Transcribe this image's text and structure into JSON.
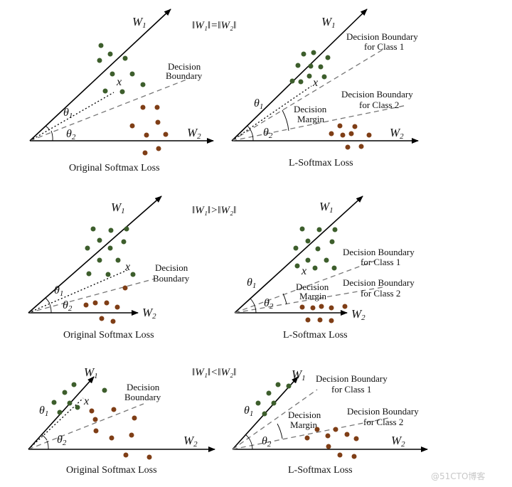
{
  "captions": {
    "original": "Original Softmax Loss",
    "lsoftmax": "L-Softmax Loss"
  },
  "labels": {
    "w1": "W",
    "w1_sub": "1",
    "w2": "W",
    "w2_sub": "2",
    "theta1": "θ",
    "theta1_sub": "1",
    "theta2": "θ",
    "theta2_sub": "2",
    "x": "x",
    "decision": "Decision",
    "boundary": "Boundary",
    "db_class1_line1": "Decision Boundary",
    "db_class1_line2": "for Class 1",
    "db_class2_line1": "Decision Boundary",
    "db_class2_line2": "for Class 2",
    "margin_line1": "Decision",
    "margin_line2": "Margin"
  },
  "rows": [
    {
      "norm_relation": "‖W₁‖=‖W₂‖"
    },
    {
      "norm_relation": "‖W₁‖>‖W₂‖"
    },
    {
      "norm_relation": "‖W₁‖<‖W₂‖"
    }
  ],
  "colors": {
    "class1": "#3d5e2c",
    "class2": "#7f3e16",
    "axis": "#000000",
    "boundary": "#777777"
  },
  "watermark": "@51CTO博客"
}
